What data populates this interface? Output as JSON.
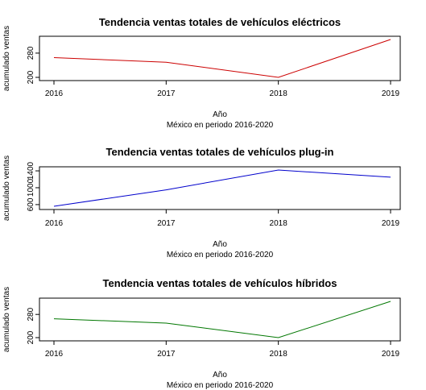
{
  "chart_data": [
    {
      "type": "line",
      "title": "Tendencia ventas totales de vehículos eléctricos",
      "xlabel": "Año",
      "sublabel": "México en periodo 2016-2020",
      "ylabel": "acumulado ventas",
      "x": [
        2016,
        2017,
        2018,
        2019
      ],
      "series": [
        {
          "values": [
            265,
            250,
            200,
            325
          ]
        }
      ],
      "ylim": [
        200,
        325
      ],
      "yticks": [
        200,
        280
      ],
      "color": "#cc0000"
    },
    {
      "type": "line",
      "title": "Tendencia ventas totales de vehículos plug-in",
      "xlabel": "Año",
      "sublabel": "México en periodo 2016-2020",
      "ylabel": "acumulado ventas",
      "x": [
        2016,
        2017,
        2018,
        2019
      ],
      "series": [
        {
          "values": [
            560,
            950,
            1420,
            1250
          ]
        }
      ],
      "ylim": [
        560,
        1420
      ],
      "yticks": [
        600,
        1000,
        1400
      ],
      "color": "#0000cc"
    },
    {
      "type": "line",
      "title": "Tendencia ventas totales de vehículos híbridos",
      "xlabel": "Año",
      "sublabel": "México en periodo 2016-2020",
      "ylabel": "acumulado ventas",
      "x": [
        2016,
        2017,
        2018,
        2019
      ],
      "series": [
        {
          "values": [
            265,
            250,
            200,
            325
          ]
        }
      ],
      "ylim": [
        200,
        325
      ],
      "yticks": [
        200,
        280
      ],
      "color": "#007700"
    }
  ]
}
